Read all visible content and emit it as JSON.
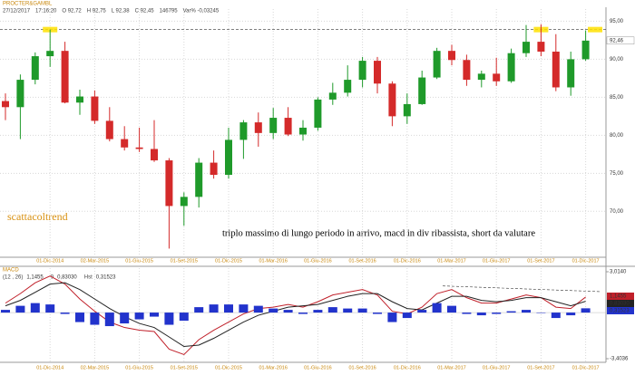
{
  "chart_data": [
    {
      "type": "candlestick",
      "title": "PROCTER&GAMBL",
      "info": [
        "27/12/2017",
        "17:16:20",
        "O 92,72",
        "H 92,75",
        "L 92,38",
        "C 92,45",
        "146795",
        "Var% -0,03245"
      ],
      "categories": [
        null,
        null,
        null,
        "01-Dic-2014",
        null,
        null,
        "02-Mar-2015",
        null,
        null,
        "01-Giu-2015",
        null,
        null,
        "01-Set-2015",
        null,
        null,
        "01-Dic-2015",
        null,
        null,
        "01-Mar-2016",
        null,
        null,
        "01-Giu-2016",
        null,
        null,
        "01-Set-2016",
        null,
        null,
        "01-Dic-2016",
        null,
        null,
        "01-Mar-2017",
        null,
        null,
        "01-Giu-2017",
        null,
        null,
        "01-Set-2017",
        null,
        null,
        "01-Dic-2017"
      ],
      "open": [
        84.5,
        83.7,
        87.3,
        90.4,
        91.1,
        84.3,
        85.1,
        81.9,
        79.5,
        78.4,
        78.2,
        76.7,
        70.7,
        71.9,
        76.4,
        74.8,
        79.4,
        81.7,
        80.3,
        82.3,
        80.1,
        81,
        84.7,
        85.6,
        87.3,
        89.8,
        86.8,
        82.5,
        84.1,
        87.6,
        91.1,
        89.9,
        87.3,
        88.1,
        87.1,
        90.8,
        92.3,
        91,
        86.3,
        90
      ],
      "high": [
        85.5,
        88,
        90.9,
        93.9,
        92.3,
        86,
        85.9,
        83.7,
        81.2,
        81,
        82,
        77,
        72.5,
        77,
        78,
        81,
        82,
        83,
        83.6,
        83.7,
        82,
        85,
        86.9,
        89.2,
        90.3,
        90.3,
        87.1,
        85.5,
        88.5,
        91.5,
        91.9,
        90.6,
        88.5,
        90.2,
        91.4,
        94.5,
        94.6,
        93.3,
        91,
        93.8
      ],
      "low": [
        82,
        79.5,
        86.7,
        89,
        84.2,
        82.7,
        81.5,
        79.2,
        78,
        77.8,
        76.5,
        65.1,
        68.1,
        70.5,
        74.3,
        74.3,
        76.9,
        78.5,
        79.5,
        79.9,
        79.3,
        80.6,
        84,
        85.1,
        86.3,
        85.5,
        81.2,
        81.5,
        84,
        87.4,
        89.2,
        86.5,
        86.3,
        86.5,
        86.9,
        90.3,
        90.4,
        85.8,
        85.2,
        89.8
      ],
      "close": [
        83.7,
        87.3,
        90.4,
        91.1,
        84.3,
        85.1,
        81.9,
        79.5,
        78.4,
        78.2,
        76.7,
        70.7,
        71.9,
        76.4,
        74.8,
        79.4,
        81.7,
        80.3,
        82.3,
        80.1,
        81,
        84.7,
        85.6,
        87.3,
        89.8,
        86.8,
        82.5,
        84.1,
        87.6,
        91.1,
        89.9,
        87.3,
        88.1,
        87.1,
        90.8,
        92.3,
        91,
        86.3,
        90,
        92.45
      ],
      "up_color": "#1f9a2a",
      "down_color": "#d42a2a",
      "ylim": [
        64.2,
        96.6
      ],
      "yticks": [
        {
          "value": 70,
          "label": "70,00"
        },
        {
          "value": 75,
          "label": "75,00"
        },
        {
          "value": 80,
          "label": "80,00"
        },
        {
          "value": 85,
          "label": "85,00"
        },
        {
          "value": 90,
          "label": "90,00"
        },
        {
          "value": 95,
          "label": "95,00"
        }
      ],
      "grid": true,
      "last_price": {
        "value": 92.46,
        "label": "92,46"
      },
      "resistance": 93.9,
      "signature": "scattacoltrend",
      "annotation": "triplo massimo di lungo periodo in arrivo, macd in div ribassista, short da valutare"
    },
    {
      "type": "macd",
      "title": "MACD",
      "categories": [
        null,
        null,
        null,
        "01-Dic-2014",
        null,
        null,
        "02-Mar-2015",
        null,
        null,
        "01-Giu-2015",
        null,
        null,
        "01-Set-2015",
        null,
        null,
        "01-Dic-2015",
        null,
        null,
        "01-Mar-2016",
        null,
        null,
        "01-Giu-2016",
        null,
        null,
        "01-Set-2016",
        null,
        null,
        "01-Dic-2016",
        null,
        null,
        "01-Mar-2017",
        null,
        null,
        "01-Giu-2017",
        null,
        null,
        "01-Set-2017",
        null,
        null,
        "01-Dic-2017"
      ],
      "series": [
        {
          "name": "(12 , 26)",
          "color": "#c0202a",
          "last_label": "1,1455",
          "values": [
            0.7,
            1.4,
            2.2,
            2.7,
            2.1,
            1.0,
            0.1,
            -0.7,
            -1.1,
            -1.3,
            -1.4,
            -2.7,
            -3.1,
            -2.0,
            -1.3,
            -0.7,
            -0.1,
            0.3,
            0.4,
            0.6,
            0.4,
            0.8,
            1.3,
            1.5,
            1.7,
            1.3,
            0.1,
            -0.1,
            0.4,
            1.4,
            1.7,
            1.1,
            0.7,
            0.7,
            1.0,
            1.3,
            1.1,
            0.4,
            0.3,
            1.1455
          ]
        },
        {
          "name": "9",
          "color": "#222222",
          "last_label": "0,83030",
          "values": [
            0.5,
            0.9,
            1.5,
            2.1,
            2.2,
            1.7,
            1.0,
            0.3,
            -0.3,
            -0.8,
            -1.1,
            -1.8,
            -2.5,
            -2.4,
            -1.9,
            -1.3,
            -0.7,
            -0.2,
            0.1,
            0.4,
            0.5,
            0.6,
            0.9,
            1.2,
            1.4,
            1.4,
            0.8,
            0.3,
            0.2,
            0.7,
            1.2,
            1.2,
            0.9,
            0.8,
            0.9,
            1.1,
            1.1,
            0.8,
            0.5,
            0.8303
          ]
        },
        {
          "name": "Hst",
          "color": "#2233cc",
          "last_label": "0,31523",
          "values": [
            0.2,
            0.5,
            0.7,
            0.6,
            -0.1,
            -0.7,
            -0.9,
            -1.0,
            -0.8,
            -0.5,
            -0.3,
            -0.9,
            -0.6,
            0.4,
            0.6,
            0.6,
            0.6,
            0.5,
            0.3,
            0.2,
            -0.1,
            0.2,
            0.4,
            0.3,
            0.3,
            -0.1,
            -0.7,
            -0.4,
            0.2,
            0.7,
            0.5,
            -0.1,
            -0.2,
            -0.1,
            0.1,
            0.2,
            0,
            -0.4,
            -0.2,
            0.31523
          ]
        }
      ],
      "ylim": [
        -3.4036,
        3.014
      ],
      "yticks": [
        {
          "value": 3.014,
          "label": "3,0140"
        },
        {
          "value": -3.4036,
          "label": "-3,4036"
        }
      ]
    }
  ]
}
